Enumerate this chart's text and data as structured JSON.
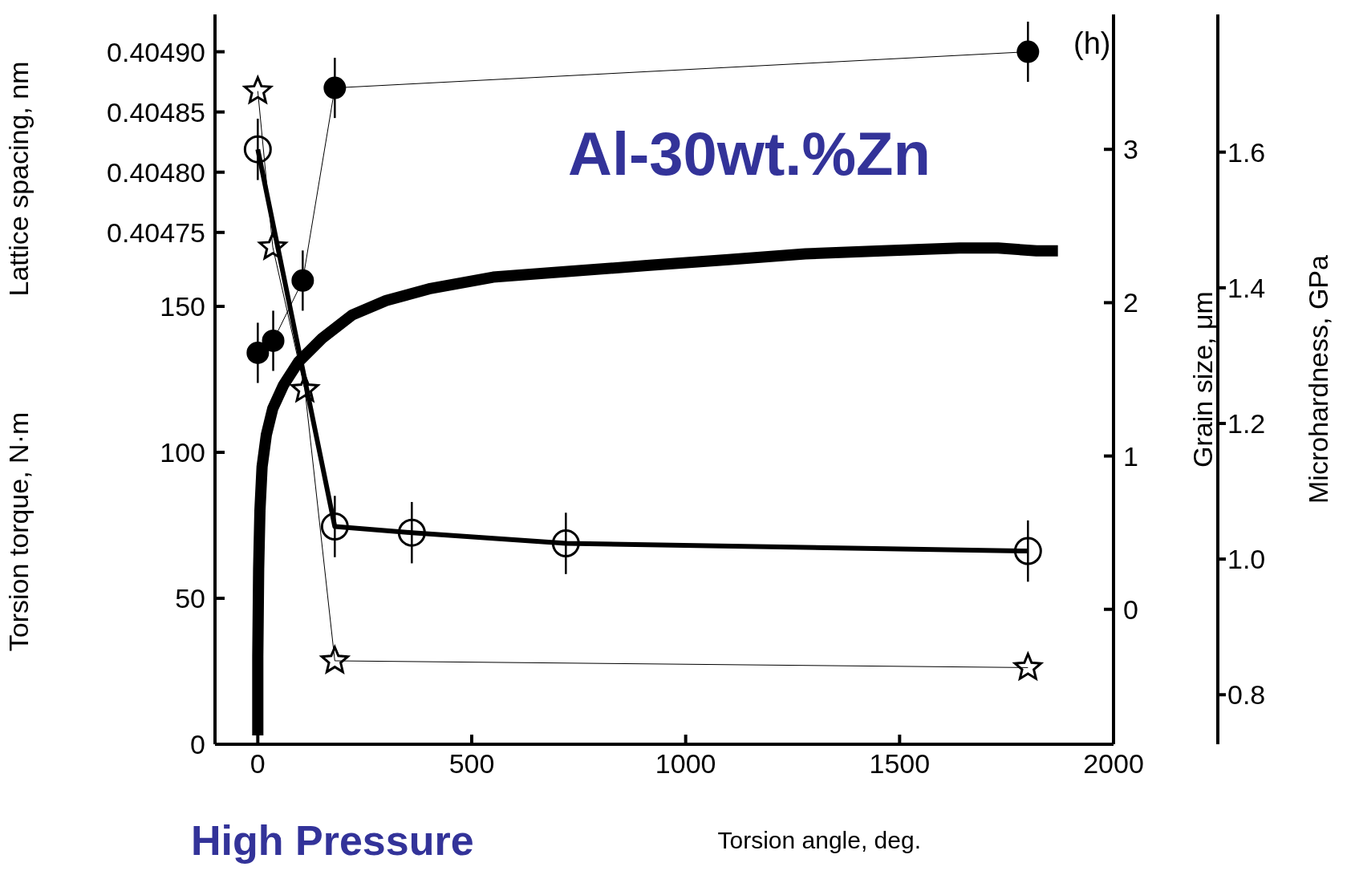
{
  "chart_data": [
    {
      "type": "line",
      "title": "Al-30wt.%Zn",
      "xlabel": "Torsion angle, deg.",
      "ylabel": "Torsion torque, N·m",
      "y2label": "Grain size, μm",
      "y3label": "Microhardness, GPa",
      "annotations": [
        "(h)",
        "High Pressure"
      ],
      "xlim": [
        -100,
        2000
      ],
      "xticks": [
        0,
        500,
        1000,
        1500,
        2000
      ],
      "ylim": [
        0,
        250
      ],
      "yticks": [
        0,
        50,
        100,
        150
      ],
      "y2lim": [
        -0.88,
        3.88
      ],
      "y2ticks": [
        0,
        1,
        2,
        3
      ],
      "y3lim": [
        0.727,
        1.803
      ],
      "y3ticks": [
        {
          "value": 0.8,
          "label": "0.8"
        },
        {
          "value": 1.0,
          "label": "1.0"
        },
        {
          "value": 1.2,
          "label": "1.2"
        },
        {
          "value": 1.4,
          "label": "1.4"
        },
        {
          "value": 1.6,
          "label": "1.6"
        }
      ],
      "series": [
        {
          "color": "#000000",
          "marker": "none",
          "x": [
            0,
            0,
            2,
            5,
            10,
            20,
            35,
            60,
            95,
            150,
            220,
            300,
            400,
            550,
            730,
            910,
            1100,
            1280,
            1460,
            1640,
            1730,
            1820,
            1870
          ],
          "values": [
            3,
            30,
            60,
            80,
            95,
            106,
            115,
            123,
            131,
            139,
            147,
            152,
            156,
            160,
            162,
            164,
            166,
            168,
            169,
            170,
            170,
            169,
            169
          ]
        },
        {
          "color": "#000000",
          "marker": "open_circle",
          "axis": "y2",
          "x": [
            0,
            180,
            360,
            720,
            1800
          ],
          "values": [
            3.0,
            0.54,
            0.5,
            0.43,
            0.38
          ],
          "errors": [
            0.2,
            0.2,
            0.2,
            0.2,
            0.2
          ]
        },
        {
          "color": "#000000",
          "marker": "star",
          "axis": "y3",
          "x": [
            0,
            35,
            110,
            180,
            1800
          ],
          "values": [
            1.69,
            1.46,
            1.25,
            0.85,
            0.84
          ]
        }
      ]
    },
    {
      "type": "line",
      "ylabel": "Lattice spacing, nm",
      "tick_labels": "y",
      "xlim": [
        -100,
        2000
      ],
      "ylim": [
        0.404325,
        0.404931
      ],
      "yticks": [
        {
          "value": 0.40475,
          "label": "0.40475"
        },
        {
          "value": 0.4048,
          "label": "0.40480"
        },
        {
          "value": 0.40485,
          "label": "0.40485"
        },
        {
          "value": 0.4049,
          "label": "0.40490"
        }
      ],
      "series": [
        {
          "color": "#000000",
          "marker": "circle",
          "x": [
            0,
            36,
            105,
            180,
            1800
          ],
          "values": [
            0.40465,
            0.40466,
            0.40471,
            0.40487,
            0.4049
          ],
          "errors": [
            2.5e-05,
            2.5e-05,
            2.5e-05,
            2.5e-05,
            2.5e-05
          ]
        }
      ]
    }
  ]
}
